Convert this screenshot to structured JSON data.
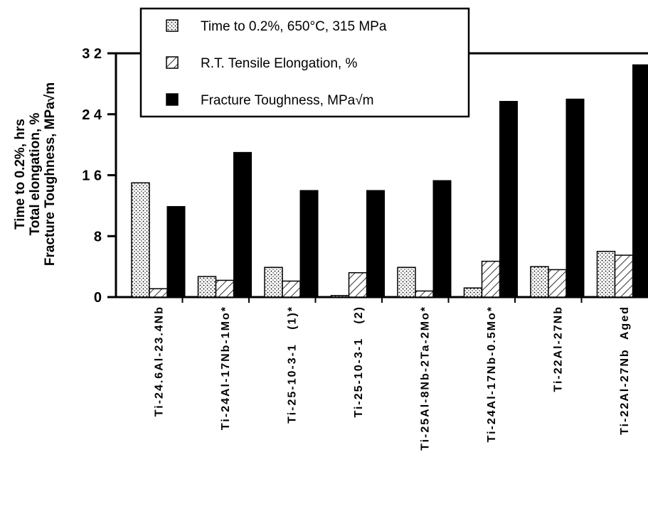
{
  "chart_data": {
    "type": "bar",
    "categories": [
      "Ti-24.6Al-23.4Nb",
      "Ti-24Al-17Nb-1Mo*",
      "Ti-25-10-3-1   (1)*",
      "Ti-25-10-3-1   (2)",
      "Ti-25Al-8Nb-2Ta-2Mo*",
      "Ti-24Al-17Nb-0.5Mo*",
      "Ti-22Al-27Nb",
      "Ti-22Al-27Nb  Aged"
    ],
    "series": [
      {
        "name": "Time to 0.2%, 650°C, 315 MPa",
        "values": [
          15.0,
          2.7,
          3.9,
          0.2,
          3.9,
          1.2,
          4.0,
          6.0
        ]
      },
      {
        "name": "R.T. Tensile Elongation, %",
        "values": [
          1.1,
          2.2,
          2.1,
          3.2,
          0.8,
          4.7,
          3.6,
          5.5
        ]
      },
      {
        "name": "Fracture Toughness, MPa√m",
        "values": [
          11.9,
          19.0,
          14.0,
          14.0,
          15.3,
          25.7,
          26.0,
          30.5
        ]
      }
    ],
    "ylabel_lines": [
      "Time to 0.2%, hrs",
      "Total elongation, %",
      "Fracture Toughness,  MPa√m"
    ],
    "yticks": [
      "0",
      "8",
      "1 6",
      "2 4",
      "3 2"
    ],
    "ylim": [
      0,
      32
    ],
    "legend_position": "top-center",
    "grid": false,
    "colors": {
      "background": "#ffffff",
      "ink": "#000000",
      "dotted_fill": "#ffffff",
      "hatched_fill": "#ffffff",
      "solid_fill": "#000000"
    }
  }
}
